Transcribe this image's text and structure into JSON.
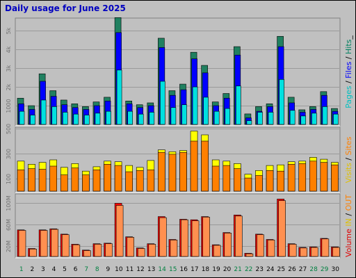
{
  "chart_data": {
    "type": "bar",
    "title": "Daily usage for June 2025",
    "title_color": "#0000c0",
    "background": "#c0c0c0",
    "categories": [
      "1",
      "2",
      "3",
      "4",
      "5",
      "6",
      "7",
      "8",
      "9",
      "10",
      "11",
      "12",
      "13",
      "14",
      "15",
      "16",
      "17",
      "18",
      "19",
      "20",
      "21",
      "22",
      "23",
      "24",
      "25",
      "26",
      "27",
      "28",
      "29",
      "30"
    ],
    "weekend_days": [
      "1",
      "7",
      "8",
      "14",
      "15",
      "21",
      "22",
      "28",
      "29"
    ],
    "weekday_label_color": "#000000",
    "weekend_label_color": "#008040",
    "panels": [
      {
        "id": "hits",
        "ylim": [
          0,
          5600
        ],
        "yticks": [
          1000,
          2000,
          3000,
          4000,
          5000
        ],
        "ytick_labels": [
          "1000",
          "2k",
          "3k",
          "4k",
          "5k"
        ],
        "legend": [
          {
            "text": "Pages",
            "color": "#00c0c0"
          },
          {
            "text": " / ",
            "color": "#000000"
          },
          {
            "text": "Files",
            "color": "#0000ff"
          },
          {
            "text": " / ",
            "color": "#000000"
          },
          {
            "text": "Hits",
            "color": "#008060"
          },
          {
            "text": "_",
            "color": "#000000"
          }
        ],
        "series": [
          {
            "name": "Hits",
            "color": "#208060",
            "values": [
              1400,
              1000,
              2700,
              1800,
              1300,
              1100,
              950,
              1200,
              1450,
              5700,
              1250,
              1050,
              1150,
              4600,
              1800,
              2150,
              3850,
              3150,
              1200,
              1650,
              4150,
              560,
              950,
              1100,
              4700,
              1450,
              780,
              950,
              1750,
              850
            ]
          },
          {
            "name": "Files",
            "color": "#0000ff",
            "values": [
              1100,
              800,
              2300,
              1500,
              1050,
              900,
              800,
              1000,
              1250,
              4900,
              1100,
              900,
              1000,
              4100,
              1550,
              1850,
              3500,
              2750,
              1000,
              1400,
              3700,
              350,
              700,
              950,
              4150,
              1150,
              650,
              800,
              1550,
              700
            ]
          },
          {
            "name": "Pages",
            "color": "#00e0e0",
            "values": [
              700,
              500,
              1300,
              950,
              650,
              550,
              500,
              600,
              700,
              2900,
              700,
              550,
              650,
              2300,
              900,
              1050,
              2000,
              1450,
              700,
              850,
              2050,
              200,
              650,
              650,
              2400,
              750,
              450,
              600,
              950,
              550
            ]
          }
        ]
      },
      {
        "id": "visits",
        "ylim": [
          0,
          500
        ],
        "yticks": [
          100,
          300,
          500
        ],
        "ytick_labels": [
          "100",
          "300",
          "500"
        ],
        "legend": [
          {
            "text": "Visits",
            "color": "#e0c000"
          },
          {
            "text": " / ",
            "color": "#000000"
          },
          {
            "text": "Sites",
            "color": "#ff8000"
          }
        ],
        "series": [
          {
            "name": "Visits",
            "color": "#ffff00",
            "values": [
              240,
              215,
              230,
              250,
              190,
              220,
              160,
              195,
              240,
              235,
              205,
              190,
              245,
              330,
              315,
              325,
              480,
              450,
              250,
              240,
              220,
              135,
              165,
              205,
              210,
              235,
              240,
              270,
              255,
              230
            ]
          },
          {
            "name": "Sites",
            "color": "#ff8000",
            "values": [
              170,
              180,
              175,
              200,
              130,
              185,
              130,
              170,
              215,
              205,
              155,
              165,
              170,
              310,
              295,
              310,
              400,
              400,
              200,
              205,
              180,
              105,
              125,
              165,
              160,
              215,
              220,
              240,
              230,
              210
            ]
          }
        ]
      },
      {
        "id": "volume",
        "ylim": [
          0,
          115
        ],
        "yticks": [
          20,
          60,
          100
        ],
        "ytick_labels": [
          "20M",
          "60M",
          "100M"
        ],
        "legend": [
          {
            "text": "Volume",
            "color": "#e00000"
          },
          {
            "text": "  ",
            "color": "#000000"
          },
          {
            "text": "IN",
            "color": "#e0c000"
          },
          {
            "text": " / ",
            "color": "#000000"
          },
          {
            "text": "OUT",
            "color": "#ff8000"
          }
        ],
        "series": [
          {
            "name": "Volume",
            "color": "#ff0000",
            "values": [
              50,
              15,
              50,
              52,
              42,
              23,
              12,
              24,
              25,
              100,
              37,
              16,
              24,
              75,
              32,
              70,
              69,
              75,
              22,
              45,
              78,
              6,
              42,
              32,
              108,
              24,
              17,
              18,
              34,
              18
            ]
          },
          {
            "name": "OUT",
            "color": "#ff9050",
            "values": [
              49,
              14,
              49,
              51,
              41,
              22,
              11,
              23,
              24,
              96,
              36,
              15,
              23,
              73,
              31,
              69,
              67,
              74,
              21,
              44,
              76,
              5,
              41,
              31,
              105,
              23,
              16,
              17,
              33,
              17
            ]
          }
        ]
      }
    ]
  }
}
